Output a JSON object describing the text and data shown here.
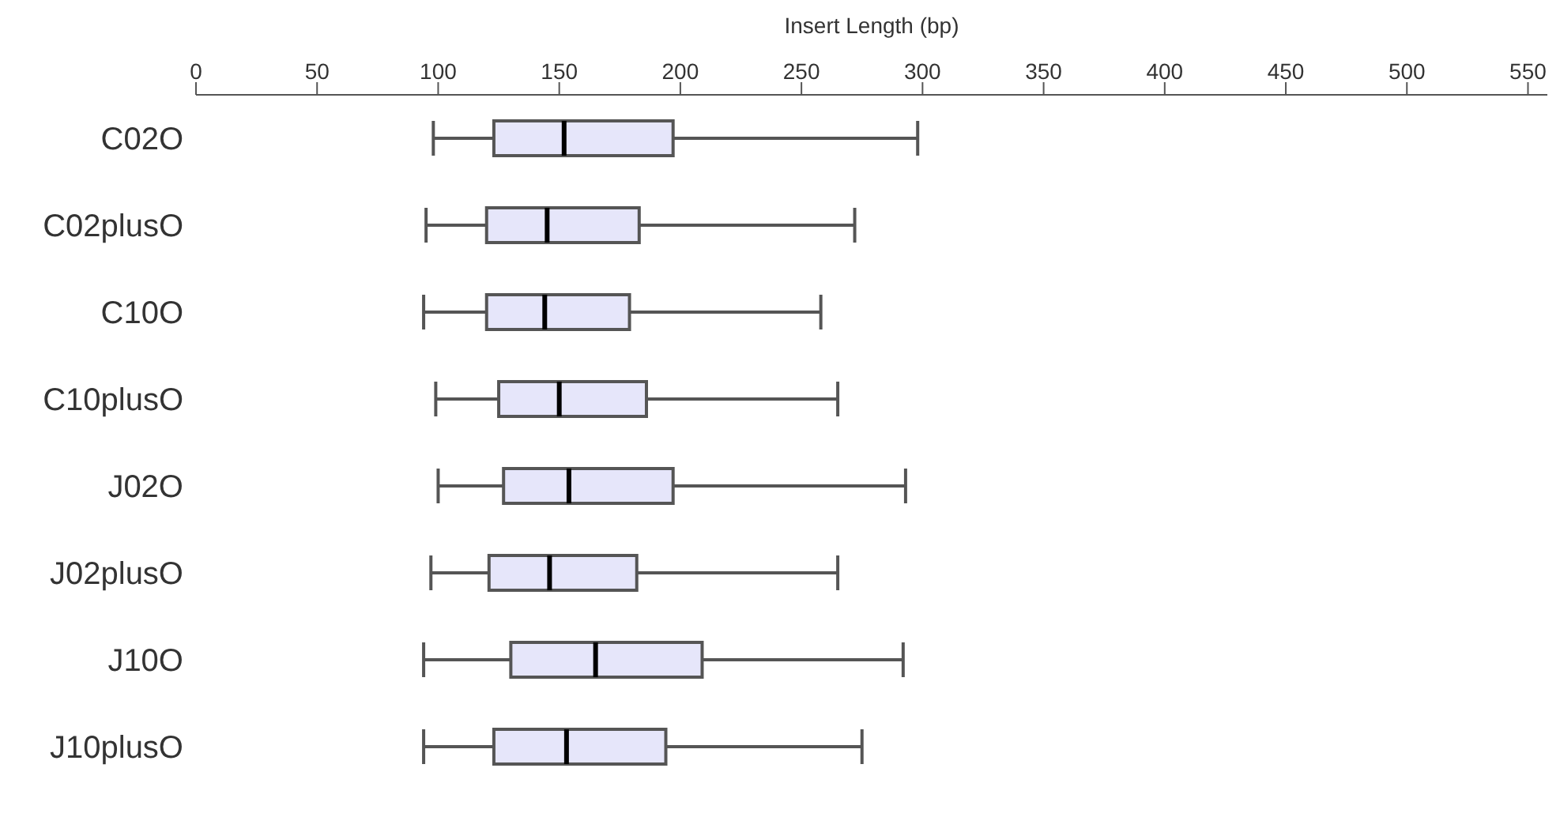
{
  "chart_data": {
    "type": "box",
    "xlabel": "Insert Length (bp)",
    "orientation": "horizontal",
    "categories": [
      "C02O",
      "C02plusO",
      "C10O",
      "C10plusO",
      "J02O",
      "J02plusO",
      "J10O",
      "J10plusO"
    ],
    "boxes": [
      {
        "low": 98,
        "q1": 123,
        "median": 152,
        "q3": 197,
        "high": 298
      },
      {
        "low": 95,
        "q1": 120,
        "median": 145,
        "q3": 183,
        "high": 272
      },
      {
        "low": 94,
        "q1": 120,
        "median": 144,
        "q3": 179,
        "high": 258
      },
      {
        "low": 99,
        "q1": 125,
        "median": 150,
        "q3": 186,
        "high": 265
      },
      {
        "low": 100,
        "q1": 127,
        "median": 154,
        "q3": 197,
        "high": 293
      },
      {
        "low": 97,
        "q1": 121,
        "median": 146,
        "q3": 182,
        "high": 265
      },
      {
        "low": 94,
        "q1": 130,
        "median": 165,
        "q3": 209,
        "high": 292
      },
      {
        "low": 94,
        "q1": 123,
        "median": 153,
        "q3": 194,
        "high": 275
      }
    ],
    "color": "#e6e6fa",
    "xlim": [
      0,
      558
    ],
    "xticks": [
      0,
      50,
      100,
      150,
      200,
      250,
      300,
      350,
      400,
      450,
      500,
      550
    ],
    "grid": false,
    "legend": false
  }
}
